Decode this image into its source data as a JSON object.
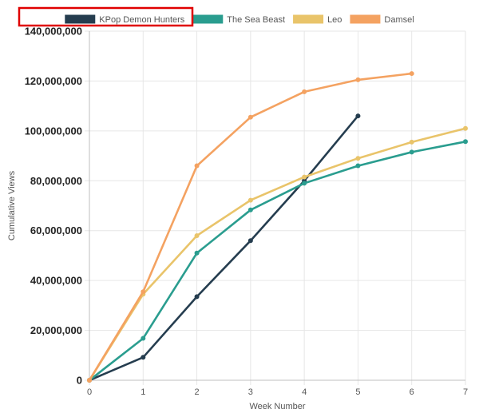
{
  "chart_data": {
    "type": "line",
    "title": "",
    "xlabel": "Week Number",
    "ylabel": "Cumulative Views",
    "x": [
      0,
      1,
      2,
      3,
      4,
      5,
      6,
      7
    ],
    "xlim": [
      0,
      7
    ],
    "ylim": [
      0,
      140000000
    ],
    "y_ticks": [
      "0",
      "20,000,000",
      "40,000,000",
      "60,000,000",
      "80,000,000",
      "100,000,000",
      "120,000,000",
      "140,000,000"
    ],
    "y_tick_values": [
      0,
      20000000,
      40000000,
      60000000,
      80000000,
      100000000,
      120000000,
      140000000
    ],
    "x_ticks": [
      "0",
      "1",
      "2",
      "3",
      "4",
      "5",
      "6",
      "7"
    ],
    "grid": true,
    "legend_position": "top",
    "highlight": "red box around the KPop Demon Hunters legend entry",
    "series": [
      {
        "name": "KPop Demon Hunters",
        "color": "#253d4f",
        "x": [
          0,
          1,
          2,
          3,
          4,
          5
        ],
        "values": [
          0,
          9200000,
          33500000,
          56000000,
          80000000,
          106000000
        ]
      },
      {
        "name": "The Sea Beast",
        "color": "#2a9d8f",
        "x": [
          0,
          1,
          2,
          3,
          4,
          5,
          6,
          7
        ],
        "values": [
          0,
          16800000,
          51000000,
          68300000,
          79000000,
          86000000,
          91500000,
          95700000
        ]
      },
      {
        "name": "Leo",
        "color": "#e9c46a",
        "x": [
          0,
          1,
          2,
          3,
          4,
          5,
          6,
          7
        ],
        "values": [
          0,
          34500000,
          58000000,
          72200000,
          81500000,
          89000000,
          95500000,
          101000000
        ]
      },
      {
        "name": "Damsel",
        "color": "#f4a261",
        "x": [
          0,
          1,
          2,
          3,
          4,
          5,
          6
        ],
        "values": [
          0,
          35500000,
          86000000,
          105500000,
          115700000,
          120500000,
          123000000
        ]
      }
    ]
  }
}
